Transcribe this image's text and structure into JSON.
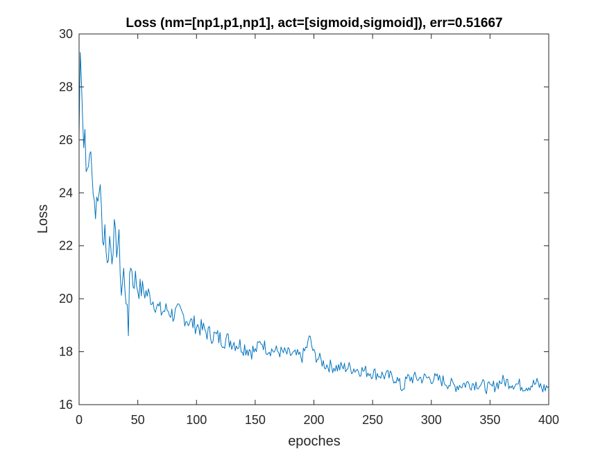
{
  "chart_data": {
    "type": "line",
    "title": "Loss (nm=[np1,p1,np1], act=[sigmoid,sigmoid]), err=0.51667",
    "xlabel": "epoches",
    "ylabel": "Loss",
    "xlim": [
      0,
      400
    ],
    "ylim": [
      16,
      30
    ],
    "xticks": [
      "0",
      "50",
      "100",
      "150",
      "200",
      "250",
      "300",
      "350",
      "400"
    ],
    "yticks": [
      "16",
      "18",
      "20",
      "22",
      "24",
      "26",
      "28",
      "30"
    ],
    "grid": false,
    "line_color": "#0072BD",
    "series": [
      {
        "x": [
          0,
          1,
          2,
          3,
          4,
          5,
          6,
          8,
          10,
          12,
          14,
          16,
          18,
          20,
          22,
          24,
          26,
          28,
          30,
          32,
          34,
          36,
          38,
          40,
          42,
          43,
          44,
          46,
          48,
          50,
          55,
          60,
          65,
          70,
          75,
          80,
          85,
          90,
          95,
          100,
          110,
          120,
          130,
          140,
          150,
          155,
          160,
          170,
          180,
          190,
          195,
          196,
          200,
          210,
          220,
          230,
          240,
          250,
          260,
          270,
          275,
          280,
          290,
          300,
          310,
          320,
          330,
          340,
          350,
          360,
          370,
          380,
          390,
          395,
          400
        ],
        "y": [
          26.2,
          29.3,
          28.2,
          26.8,
          25.7,
          26.4,
          24.8,
          25.0,
          25.9,
          24.0,
          23.4,
          23.6,
          24.5,
          22.0,
          22.8,
          21.2,
          22.3,
          21.6,
          22.6,
          21.9,
          22.2,
          20.2,
          21.0,
          20.1,
          18.6,
          21.0,
          21.4,
          20.6,
          20.8,
          20.4,
          20.3,
          20.1,
          19.8,
          19.5,
          19.6,
          19.4,
          19.5,
          19.3,
          19.1,
          19.0,
          18.7,
          18.5,
          18.4,
          18.2,
          18.0,
          18.4,
          18.1,
          18.0,
          17.9,
          17.8,
          18.3,
          18.6,
          17.9,
          17.5,
          17.4,
          17.4,
          17.3,
          17.2,
          17.1,
          17.0,
          16.6,
          17.0,
          17.0,
          17.0,
          16.9,
          16.7,
          16.8,
          16.8,
          16.6,
          16.9,
          16.8,
          16.7,
          16.8,
          16.6,
          16.7
        ]
      }
    ]
  }
}
